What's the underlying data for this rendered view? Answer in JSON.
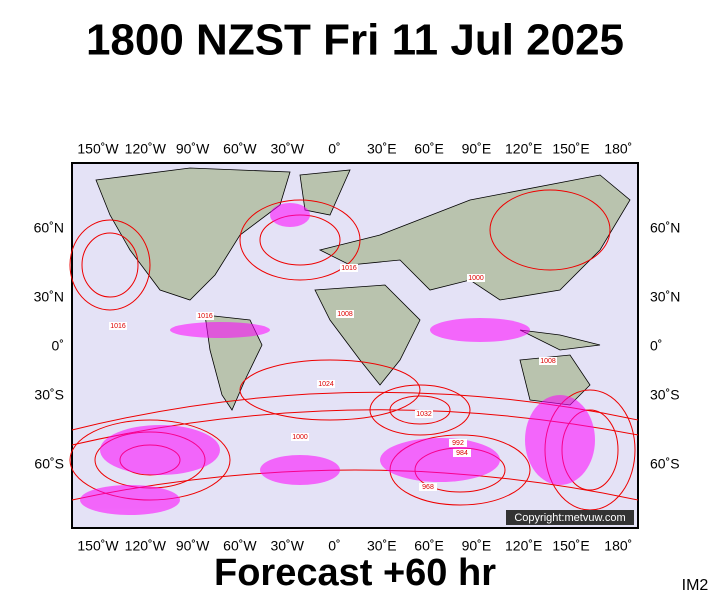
{
  "title": "1800 NZST Fri 11 Jul 2025",
  "longitude_labels": [
    "150˚W",
    "120˚W",
    "90˚W",
    "60˚W",
    "30˚W",
    "0˚",
    "30˚E",
    "60˚E",
    "90˚E",
    "120˚E",
    "150˚E",
    "180˚"
  ],
  "latitude_labels": [
    "60˚N",
    "30˚N",
    "0˚",
    "30˚S",
    "60˚S"
  ],
  "isobar_labels": [
    "1016",
    "1008",
    "1016",
    "1024",
    "1032",
    "1000",
    "984",
    "992",
    "1008",
    "1000",
    "1016",
    "968"
  ],
  "copyright": "Copyright:metvuw.com",
  "footer": "Forecast +60 hr",
  "image_id": "IM2"
}
